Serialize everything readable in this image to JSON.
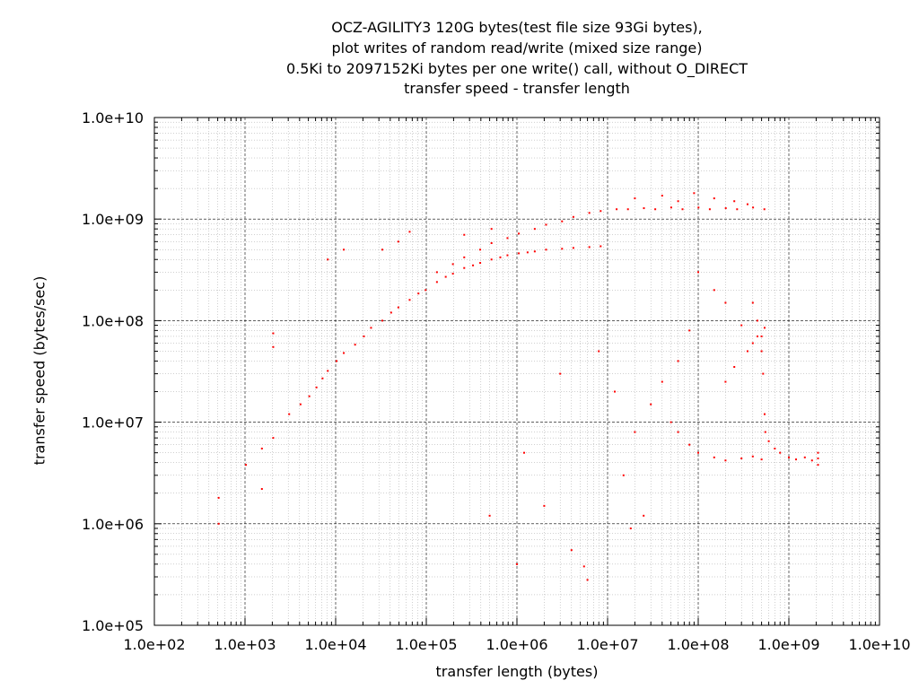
{
  "chart_data": {
    "type": "scatter",
    "title": [
      "OCZ-AGILITY3 120G bytes(test file size 93Gi bytes),",
      "plot writes of random read/write (mixed size range)",
      "0.5Ki to 2097152Ki bytes per one write() call, without O_DIRECT",
      "transfer speed - transfer length"
    ],
    "xlabel": "transfer length (bytes)",
    "ylabel": "transfer speed (bytes/sec)",
    "x_scale": "log",
    "y_scale": "log",
    "xlim": [
      100,
      10000000000
    ],
    "ylim": [
      100000,
      10000000000
    ],
    "x_ticks": [
      {
        "v": 100,
        "label": "1.0e+02"
      },
      {
        "v": 1000,
        "label": "1.0e+03"
      },
      {
        "v": 10000,
        "label": "1.0e+04"
      },
      {
        "v": 100000,
        "label": "1.0e+05"
      },
      {
        "v": 1000000,
        "label": "1.0e+06"
      },
      {
        "v": 10000000,
        "label": "1.0e+07"
      },
      {
        "v": 100000000,
        "label": "1.0e+08"
      },
      {
        "v": 1000000000,
        "label": "1.0e+09"
      },
      {
        "v": 10000000000,
        "label": "1.0e+10"
      }
    ],
    "y_ticks": [
      {
        "v": 100000,
        "label": "1.0e+05"
      },
      {
        "v": 1000000,
        "label": "1.0e+06"
      },
      {
        "v": 10000000,
        "label": "1.0e+07"
      },
      {
        "v": 100000000,
        "label": "1.0e+08"
      },
      {
        "v": 1000000000,
        "label": "1.0e+09"
      },
      {
        "v": 10000000000,
        "label": "1.0e+10"
      }
    ],
    "grid": true,
    "series": [
      {
        "color": "#ff0000",
        "points": [
          [
            512,
            1800000
          ],
          [
            512,
            1000000
          ],
          [
            1024,
            3800000
          ],
          [
            1536,
            5500000
          ],
          [
            1536,
            2200000
          ],
          [
            2048,
            7000000
          ],
          [
            2048,
            75000000
          ],
          [
            2048,
            55000000
          ],
          [
            3072,
            12000000
          ],
          [
            4096,
            15000000
          ],
          [
            5120,
            18000000
          ],
          [
            6144,
            22000000
          ],
          [
            7168,
            27000000
          ],
          [
            8192,
            32000000
          ],
          [
            10240,
            40000000
          ],
          [
            12288,
            48000000
          ],
          [
            16384,
            58000000
          ],
          [
            20480,
            70000000
          ],
          [
            24576,
            85000000
          ],
          [
            32768,
            100000000
          ],
          [
            40960,
            120000000
          ],
          [
            49152,
            135000000
          ],
          [
            65536,
            160000000
          ],
          [
            81920,
            185000000
          ],
          [
            98304,
            200000000
          ],
          [
            131072,
            240000000
          ],
          [
            163840,
            270000000
          ],
          [
            196608,
            290000000
          ],
          [
            262144,
            330000000
          ],
          [
            327680,
            350000000
          ],
          [
            393216,
            370000000
          ],
          [
            524288,
            400000000
          ],
          [
            655360,
            420000000
          ],
          [
            786432,
            440000000
          ],
          [
            1048576,
            460000000
          ],
          [
            1310720,
            470000000
          ],
          [
            1572864,
            480000000
          ],
          [
            2097152,
            500000000
          ],
          [
            3145728,
            510000000
          ],
          [
            4194304,
            520000000
          ],
          [
            6291456,
            530000000
          ],
          [
            8388608,
            540000000
          ],
          [
            131072,
            300000000
          ],
          [
            196608,
            360000000
          ],
          [
            262144,
            420000000
          ],
          [
            393216,
            500000000
          ],
          [
            524288,
            580000000
          ],
          [
            786432,
            650000000
          ],
          [
            1048576,
            720000000
          ],
          [
            1572864,
            800000000
          ],
          [
            2097152,
            880000000
          ],
          [
            3145728,
            950000000
          ],
          [
            4194304,
            1050000000
          ],
          [
            6291456,
            1150000000
          ],
          [
            8388608,
            1200000000
          ],
          [
            12582912,
            1250000000
          ],
          [
            16777216,
            1250000000
          ],
          [
            25165824,
            1280000000
          ],
          [
            33554432,
            1250000000
          ],
          [
            50331648,
            1300000000
          ],
          [
            67108864,
            1250000000
          ],
          [
            100663296,
            1300000000
          ],
          [
            134217728,
            1250000000
          ],
          [
            201326592,
            1280000000
          ],
          [
            268435456,
            1250000000
          ],
          [
            402653184,
            1300000000
          ],
          [
            536870912,
            1250000000
          ],
          [
            20000000,
            1600000000
          ],
          [
            40000000,
            1700000000
          ],
          [
            60000000,
            1500000000
          ],
          [
            90000000,
            1800000000
          ],
          [
            150000000,
            1600000000
          ],
          [
            250000000,
            1500000000
          ],
          [
            350000000,
            1400000000
          ],
          [
            524288,
            800000000
          ],
          [
            262144,
            700000000
          ],
          [
            65536,
            750000000
          ],
          [
            49152,
            600000000
          ],
          [
            32768,
            500000000
          ],
          [
            12288,
            500000000
          ],
          [
            8192,
            400000000
          ],
          [
            100000000,
            300000000
          ],
          [
            150000000,
            200000000
          ],
          [
            200000000,
            150000000
          ],
          [
            300000000,
            90000000
          ],
          [
            400000000,
            60000000
          ],
          [
            500000000,
            50000000
          ],
          [
            80000000,
            80000000
          ],
          [
            60000000,
            40000000
          ],
          [
            40000000,
            25000000
          ],
          [
            30000000,
            15000000
          ],
          [
            20000000,
            8000000
          ],
          [
            15000000,
            3000000
          ],
          [
            25000000,
            1200000
          ],
          [
            18000000,
            900000
          ],
          [
            6000000,
            280000
          ],
          [
            5500000,
            380000
          ],
          [
            4000000,
            550000
          ],
          [
            1000000,
            400000
          ],
          [
            2000000,
            1500000
          ],
          [
            500000,
            1200000
          ],
          [
            1200000,
            5000000
          ],
          [
            3000000,
            30000000
          ],
          [
            8000000,
            50000000
          ],
          [
            12000000,
            20000000
          ],
          [
            50000000,
            10000000
          ],
          [
            400000000,
            150000000
          ],
          [
            450000000,
            100000000
          ],
          [
            500000000,
            70000000
          ],
          [
            520000000,
            30000000
          ],
          [
            540000000,
            12000000
          ],
          [
            550000000,
            8000000
          ],
          [
            600000000,
            6500000
          ],
          [
            700000000,
            5500000
          ],
          [
            800000000,
            5000000
          ],
          [
            1000000000,
            4500000
          ],
          [
            1200000000,
            4300000
          ],
          [
            1500000000,
            4500000
          ],
          [
            1800000000,
            4200000
          ],
          [
            2097152000,
            4400000
          ],
          [
            2097152000,
            3800000
          ],
          [
            2097152000,
            5000000
          ],
          [
            150000000,
            4500000
          ],
          [
            200000000,
            4200000
          ],
          [
            300000000,
            4400000
          ],
          [
            400000000,
            4600000
          ],
          [
            500000000,
            4300000
          ],
          [
            100000000,
            5000000
          ],
          [
            80000000,
            6000000
          ],
          [
            60000000,
            8000000
          ],
          [
            200000000,
            25000000
          ],
          [
            250000000,
            35000000
          ],
          [
            350000000,
            50000000
          ],
          [
            450000000,
            70000000
          ],
          [
            540000000,
            85000000
          ]
        ]
      }
    ]
  }
}
